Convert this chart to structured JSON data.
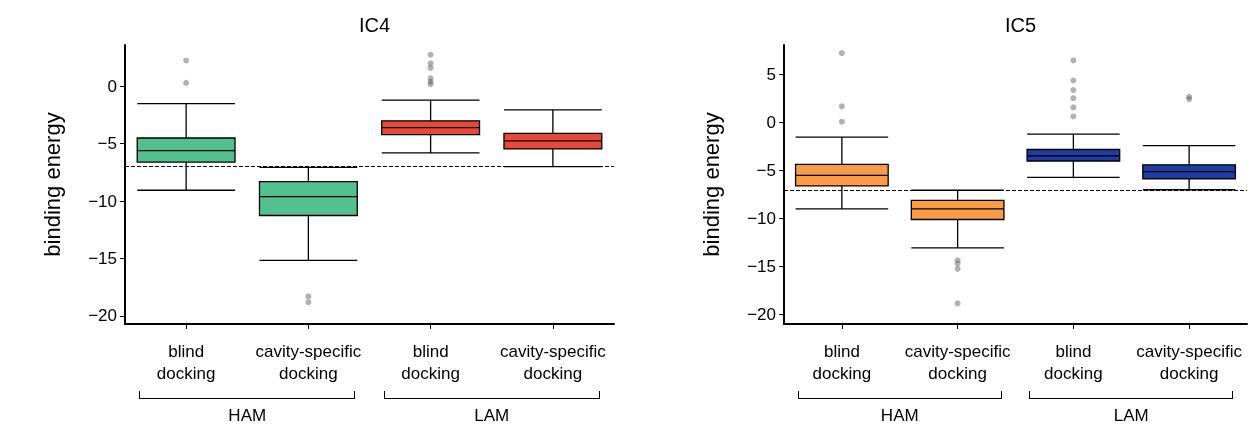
{
  "chart_data": [
    {
      "type": "box",
      "title": "IC4",
      "ylabel": "binding energy",
      "categories": [
        "blind\ndocking",
        "cavity-specific\ndocking",
        "blind\ndocking",
        "cavity-specific\ndocking"
      ],
      "colors": [
        "#52c08f",
        "#52c08f",
        "#e8483a",
        "#e8483a"
      ],
      "boxes": [
        {
          "low": -9.05,
          "q1": -6.6,
          "median": -5.6,
          "q3": -4.5,
          "high": -1.5,
          "outliers": [
            2.25,
            0.3
          ]
        },
        {
          "low": -15.15,
          "q1": -11.25,
          "median": -9.6,
          "q3": -8.3,
          "high": -7.05,
          "outliers": [
            -18.8,
            -18.3
          ]
        },
        {
          "low": -5.8,
          "q1": -4.2,
          "median": -3.6,
          "q3": -3.0,
          "high": -1.2,
          "outliers": [
            2.75,
            2.0,
            1.6,
            0.7,
            0.4,
            0.2
          ]
        },
        {
          "low": -7.0,
          "q1": -5.45,
          "median": -4.75,
          "q3": -4.1,
          "high": -2.05
        }
      ],
      "ylim": [
        -20.7,
        3.6
      ],
      "yticks": [
        -20,
        -15,
        -10,
        -5,
        0
      ],
      "ref_lines": [
        {
          "axis": "y",
          "value": -7,
          "line_style": "dashed",
          "color": "#000000"
        }
      ],
      "annotations": [
        "HAM",
        "LAM"
      ]
    },
    {
      "type": "box",
      "title": "IC5",
      "ylabel": "binding energy",
      "categories": [
        "blind\ndocking",
        "cavity-specific\ndocking",
        "blind\ndocking",
        "cavity-specific\ndocking"
      ],
      "colors": [
        "#f99c45",
        "#f99c45",
        "#1d3ea8",
        "#1d3ea8"
      ],
      "boxes": [
        {
          "low": -9.0,
          "q1": -6.6,
          "median": -5.5,
          "q3": -4.35,
          "high": -1.5,
          "outliers": [
            7.25,
            1.7,
            0.1
          ]
        },
        {
          "low": -13.05,
          "q1": -10.1,
          "median": -9.0,
          "q3": -8.1,
          "high": -7.05,
          "outliers": [
            -14.35,
            -14.7,
            -15.25,
            -18.85
          ]
        },
        {
          "low": -5.7,
          "q1": -4.0,
          "median": -3.45,
          "q3": -2.8,
          "high": -1.2,
          "outliers": [
            6.5,
            4.4,
            3.4,
            2.55,
            1.6,
            0.65
          ]
        },
        {
          "low": -7.0,
          "q1": -5.85,
          "median": -5.1,
          "q3": -4.4,
          "high": -2.4,
          "outliers": [
            2.7,
            2.45
          ]
        }
      ],
      "ylim": [
        -21,
        8.1
      ],
      "yticks": [
        -20,
        -15,
        -10,
        -5,
        0,
        5
      ],
      "ref_lines": [
        {
          "axis": "y",
          "value": -7,
          "line_style": "dashed",
          "color": "#000000"
        }
      ],
      "annotations": [
        "HAM",
        "LAM"
      ]
    }
  ]
}
